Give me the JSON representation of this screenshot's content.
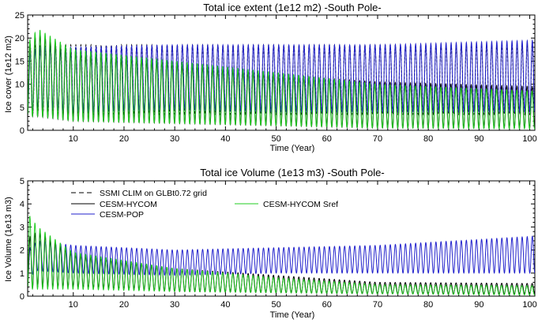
{
  "chart_data": [
    {
      "type": "line",
      "title": "Total ice extent (1e12 m2)   -South Pole-",
      "xlabel": "Time (Year)",
      "ylabel": "Ice cover (1e12 m2)",
      "xlim": [
        1,
        101
      ],
      "ylim": [
        0,
        25
      ],
      "xticks": [
        10,
        20,
        30,
        40,
        50,
        60,
        70,
        80,
        90,
        100
      ],
      "yticks": [
        0,
        5,
        10,
        15,
        20,
        25
      ],
      "legend": "none",
      "grid": false,
      "series": [
        {
          "color": "#000000",
          "dash": "dashed",
          "seasonal_cycle": true,
          "anchor_year": [
            1,
            10,
            30,
            50,
            70,
            101
          ],
          "max": [
            18.5,
            18.5,
            18.5,
            18.5,
            18.5,
            18.5
          ],
          "min": [
            3.5,
            3.5,
            3.5,
            3.5,
            3.5,
            3.5
          ]
        },
        {
          "color": "#000000",
          "dash": "solid",
          "seasonal_cycle": true,
          "anchor_year": [
            1,
            3,
            10,
            30,
            50,
            70,
            101
          ],
          "max": [
            18,
            21,
            17,
            14.5,
            12,
            10.5,
            9.5
          ],
          "min": [
            3,
            3,
            2,
            1.5,
            1,
            0.5,
            0.5
          ]
        },
        {
          "color": "#2222cc",
          "dash": "solid",
          "seasonal_cycle": true,
          "anchor_year": [
            1,
            3,
            10,
            30,
            50,
            70,
            101
          ],
          "max": [
            16,
            18,
            18,
            18.5,
            18.5,
            18.5,
            19.5
          ],
          "min": [
            4,
            5,
            4,
            4.5,
            4,
            4,
            4
          ]
        },
        {
          "color": "#22cc22",
          "dash": "solid",
          "seasonal_cycle": true,
          "anchor_year": [
            1,
            3,
            10,
            30,
            50,
            70,
            101
          ],
          "max": [
            19,
            22,
            17.5,
            15,
            12.5,
            10,
            8.5
          ],
          "min": [
            3,
            3,
            2,
            1.5,
            1,
            0.5,
            0.3
          ]
        }
      ]
    },
    {
      "type": "line",
      "title": "Total ice Volume (1e13 m3)   -South Pole-",
      "xlabel": "Time (Year)",
      "ylabel": "Ice Volume (1e13 m3)",
      "xlim": [
        1,
        101
      ],
      "ylim": [
        0,
        5
      ],
      "xticks": [
        10,
        20,
        30,
        40,
        50,
        60,
        70,
        80,
        90,
        100
      ],
      "yticks": [
        0,
        1,
        2,
        3,
        4,
        5
      ],
      "legend": "top-left",
      "grid": false,
      "series": [
        {
          "name": "SSMI CLIM on GLBt0.72 grid",
          "color": "#000000",
          "dash": "dashed",
          "seasonal_cycle": false
        },
        {
          "name": "CESM-HYCOM",
          "color": "#000000",
          "dash": "solid",
          "seasonal_cycle": true,
          "anchor_year": [
            1,
            3,
            10,
            30,
            50,
            70,
            101
          ],
          "max": [
            2.5,
            2.8,
            1.8,
            1.2,
            0.9,
            0.6,
            0.55
          ],
          "min": [
            0.3,
            0.4,
            0.4,
            0.2,
            0.15,
            0.1,
            0.1
          ]
        },
        {
          "name": "CESM-POP",
          "color": "#2222cc",
          "dash": "solid",
          "seasonal_cycle": true,
          "anchor_year": [
            1,
            3,
            10,
            30,
            50,
            70,
            101
          ],
          "max": [
            2.0,
            2.4,
            2.2,
            2.0,
            2.1,
            2.2,
            2.6
          ],
          "min": [
            0.8,
            1.1,
            1.0,
            0.9,
            1.0,
            1.0,
            1.0
          ]
        },
        {
          "name": "CESM-HYCOM Sref",
          "color": "#22cc22",
          "dash": "solid",
          "seasonal_cycle": true,
          "anchor_year": [
            1,
            3,
            10,
            30,
            50,
            70,
            101
          ],
          "max": [
            3.6,
            3.0,
            1.9,
            1.2,
            0.8,
            0.5,
            0.45
          ],
          "min": [
            0.3,
            0.3,
            0.3,
            0.2,
            0.15,
            0.1,
            0.05
          ]
        }
      ]
    }
  ]
}
